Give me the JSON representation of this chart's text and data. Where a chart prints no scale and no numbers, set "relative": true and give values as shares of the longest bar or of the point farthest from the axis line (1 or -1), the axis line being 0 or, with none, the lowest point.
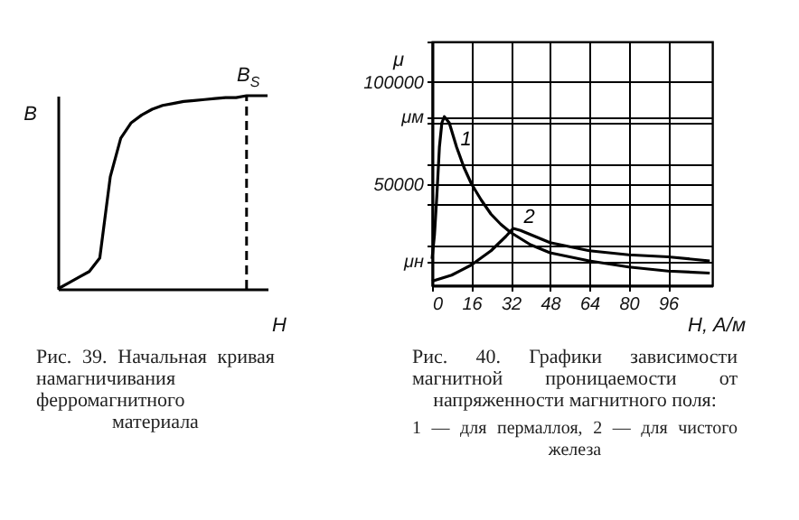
{
  "chart_data": [
    {
      "type": "line",
      "xlabel": "H",
      "ylabel": "B",
      "relative": true,
      "categories": [
        null,
        null,
        null,
        null,
        null,
        null,
        null,
        null,
        null,
        null,
        null,
        null,
        null,
        null,
        null,
        null,
        null,
        null,
        null,
        null,
        null
      ],
      "series": [
        {
          "color": "#000000",
          "values": [
            0,
            0.03,
            0.06,
            0.09,
            0.16,
            0.58,
            0.78,
            0.86,
            0.9,
            0.93,
            0.95,
            0.96,
            0.97,
            0.975,
            0.98,
            0.985,
            0.99,
            0.99,
            1,
            1,
            1
          ]
        }
      ],
      "annotations": [
        "B$_{S}$",
        "Рис. 39. Начальная кривая намагничивания ферромагнитного материала"
      ]
    },
    {
      "type": "line",
      "xlabel": "H, А/м",
      "ylabel": "μ",
      "grid": true,
      "xlim": [
        0,
        114
      ],
      "xticks": [
        0,
        16,
        32,
        48,
        64,
        80,
        96
      ],
      "ylim": [
        0,
        120000
      ],
      "yticks": [
        {
          "value": 12000,
          "label": "μн"
        },
        {
          "value": 20000,
          "label": null
        },
        {
          "value": 40000,
          "label": null
        },
        50000,
        {
          "value": 60000,
          "label": null
        },
        {
          "value": 80000,
          "label": null
        },
        {
          "value": 83000,
          "label": "μм"
        },
        100000,
        {
          "value": 120000,
          "label": null
        }
      ],
      "series": [
        {
          "name": "1",
          "color": "#000000",
          "x": [
            0,
            1,
            2,
            3,
            4,
            5,
            7,
            10,
            13,
            16,
            20,
            24,
            28,
            32,
            40,
            48,
            64,
            80,
            96,
            113
          ],
          "values": [
            13000,
            25000,
            45000,
            68000,
            80000,
            83000,
            80000,
            68000,
            58000,
            50000,
            42000,
            35000,
            30000,
            26000,
            20000,
            16000,
            12000,
            9000,
            7000,
            6000
          ]
        },
        {
          "name": "2",
          "color": "#000000",
          "x": [
            0,
            8,
            16,
            24,
            30,
            33,
            36,
            40,
            48,
            64,
            80,
            96,
            113
          ],
          "values": [
            2000,
            5000,
            10000,
            17000,
            24000,
            28000,
            27000,
            25000,
            21000,
            17000,
            15000,
            14000,
            12000
          ]
        }
      ],
      "annotations": [
        "Рис. 40. Графики зависимости магнитной проницаемости от напряженности магнитного поля:",
        "1 — для пермаллоя, 2 — для чистого железа"
      ]
    }
  ]
}
